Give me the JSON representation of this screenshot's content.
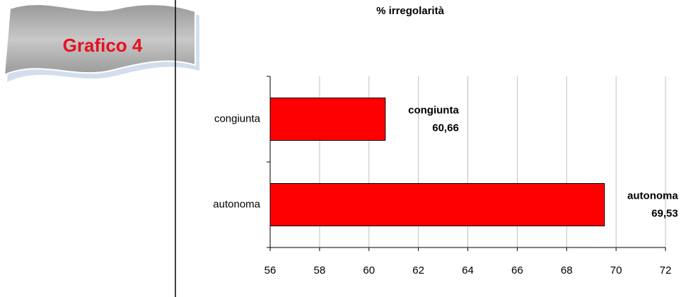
{
  "banner": "Grafico 4",
  "chart_data": {
    "type": "barh",
    "title": "% irregolarità",
    "categories": [
      "congiunta",
      "autonoma"
    ],
    "values": [
      60.66,
      69.53
    ],
    "value_labels": [
      "60,66",
      "69,53"
    ],
    "color": "#ff0000",
    "xlim": [
      56,
      72
    ],
    "xticks": [
      56,
      58,
      60,
      62,
      64,
      66,
      68,
      70,
      72
    ],
    "grid": true
  }
}
